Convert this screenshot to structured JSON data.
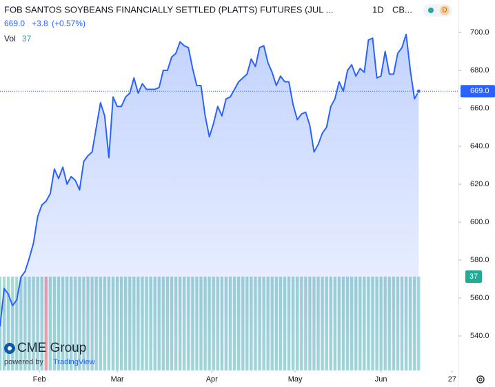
{
  "chart_data": {
    "type": "area",
    "title": "FOB SANTOS SOYBEANS FINANCIALLY SETTLED (PLATTS) FUTURES (JUL ...",
    "interval": "1D",
    "exchange": "CB...",
    "badge": "D",
    "last": {
      "value": 669.0,
      "label": "669.0"
    },
    "change": "+3.8",
    "change_pct": "(+0.57%)",
    "color": "#2962ff",
    "values": [
      545,
      565,
      562,
      556,
      559,
      571,
      574,
      581,
      589,
      603,
      609,
      611,
      615,
      628,
      623,
      629,
      620,
      624,
      622,
      617,
      632,
      635,
      637,
      650,
      663,
      656,
      634,
      666,
      661,
      661,
      666,
      668,
      676,
      668,
      673,
      670,
      670,
      670,
      671,
      680,
      680,
      687,
      689,
      695,
      693,
      692,
      681,
      672,
      672,
      656,
      645,
      652,
      661,
      656,
      665,
      666,
      670,
      674,
      676,
      678,
      686,
      682,
      692,
      693,
      684,
      679,
      672,
      677,
      674,
      674,
      662,
      654,
      657,
      658,
      651,
      637,
      641,
      647,
      650,
      661,
      665,
      674,
      669,
      680,
      683,
      677,
      681,
      679,
      696,
      697,
      676,
      677,
      690,
      678,
      678,
      689,
      692,
      699,
      680,
      665,
      669
    ],
    "volume": {
      "label": "Vol",
      "last": 37,
      "color": "#a6dad3",
      "down_color": "#f2a3a3",
      "down": [
        11
      ],
      "lim": [
        0,
        37
      ],
      "values": [
        37,
        37,
        37,
        37,
        37,
        37,
        37,
        37,
        37,
        37,
        37,
        37,
        37,
        37,
        37,
        37,
        37,
        37,
        37,
        37,
        37,
        37,
        37,
        37,
        37,
        37,
        37,
        37,
        37,
        37,
        37,
        37,
        37,
        37,
        37,
        37,
        37,
        37,
        37,
        37,
        37,
        37,
        37,
        37,
        37,
        37,
        37,
        37,
        37,
        37,
        37,
        37,
        37,
        37,
        37,
        37,
        37,
        37,
        37,
        37,
        37,
        37,
        37,
        37,
        37,
        37,
        37,
        37,
        37,
        37,
        37,
        37,
        37,
        37,
        37,
        37,
        37,
        37,
        37,
        37,
        37,
        37,
        37,
        37,
        37,
        37,
        37,
        37,
        37,
        37,
        37,
        37,
        37,
        37,
        37,
        37,
        37,
        37,
        37,
        37,
        37
      ]
    },
    "xlim": [
      0,
      109.5
    ],
    "xticks": [
      {
        "value": 9.4,
        "label": "Feb"
      },
      {
        "value": 28,
        "label": "Mar"
      },
      {
        "value": 50.6,
        "label": "Apr"
      },
      {
        "value": 70.5,
        "label": "May"
      },
      {
        "value": 91,
        "label": "Jun"
      },
      {
        "value": 108,
        "label": "27"
      }
    ],
    "ylim": [
      521.8,
      706.2
    ],
    "yticks": [
      {
        "value": 540,
        "label": "540.0"
      },
      {
        "value": 560,
        "label": "560.0"
      },
      {
        "value": 580,
        "label": "580.0"
      },
      {
        "value": 600,
        "label": "600.0"
      },
      {
        "value": 620,
        "label": "620.0"
      },
      {
        "value": 640,
        "label": "640.0"
      },
      {
        "value": 660,
        "label": "660.0"
      },
      {
        "value": 680,
        "label": "680.0"
      },
      {
        "value": 700,
        "label": "700.0"
      }
    ],
    "logo": {
      "brand": "CME Group",
      "powered": "powered by",
      "vendor": "TradingView"
    }
  }
}
